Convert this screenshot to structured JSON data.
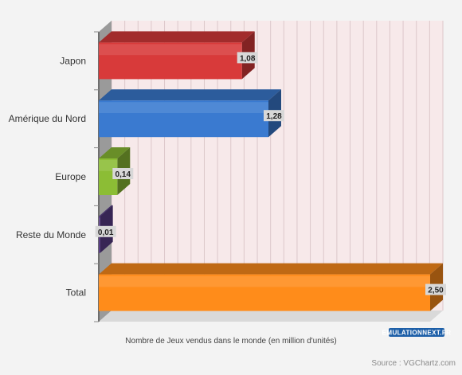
{
  "chart_data": {
    "type": "bar",
    "orientation": "horizontal",
    "categories": [
      "Japon",
      "Amérique du Nord",
      "Europe",
      "Reste du Monde",
      "Total"
    ],
    "values": [
      1.08,
      1.28,
      0.14,
      0.01,
      2.5
    ],
    "value_labels": [
      "1,08",
      "1,28",
      "0,14",
      "0,01",
      "2,50"
    ],
    "bar_colors": [
      "#d83a3a",
      "#3a7ad0",
      "#8cbd35",
      "#5b3e8c",
      "#ff8c1a"
    ],
    "xlabel": "Nombre de Jeux vendus dans le monde (en million d'unités)",
    "xlim": [
      0,
      2.5
    ],
    "grid": true,
    "legend": "none",
    "style": "3d"
  },
  "footer": {
    "source": "Source : VGChartz.com",
    "logo": "EMULATIONNEXT.FR"
  },
  "colors": {
    "plot_background": "#f7e9ea",
    "page_background": "#f3f3f3",
    "gridline": "#dcc7ca",
    "accent": "#ff8c1a"
  }
}
